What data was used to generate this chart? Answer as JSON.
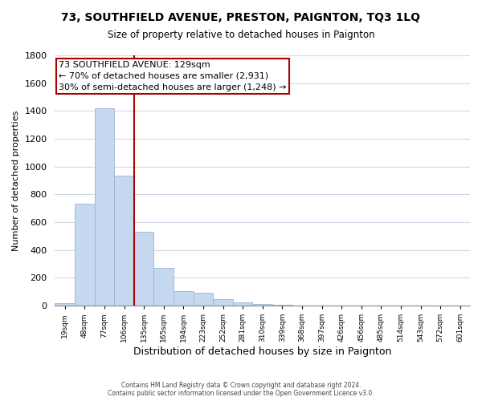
{
  "title": "73, SOUTHFIELD AVENUE, PRESTON, PAIGNTON, TQ3 1LQ",
  "subtitle": "Size of property relative to detached houses in Paignton",
  "xlabel": "Distribution of detached houses by size in Paignton",
  "ylabel": "Number of detached properties",
  "footer_line1": "Contains HM Land Registry data © Crown copyright and database right 2024.",
  "footer_line2": "Contains public sector information licensed under the Open Government Licence v3.0.",
  "bar_labels": [
    "19sqm",
    "48sqm",
    "77sqm",
    "106sqm",
    "135sqm",
    "165sqm",
    "194sqm",
    "223sqm",
    "252sqm",
    "281sqm",
    "310sqm",
    "339sqm",
    "368sqm",
    "397sqm",
    "426sqm",
    "456sqm",
    "485sqm",
    "514sqm",
    "543sqm",
    "572sqm",
    "601sqm"
  ],
  "bar_values": [
    20,
    735,
    1420,
    935,
    530,
    270,
    103,
    90,
    48,
    25,
    10,
    5,
    2,
    1,
    0,
    0,
    0,
    0,
    0,
    0,
    0
  ],
  "bar_color": "#c5d8f0",
  "bar_edge_color": "#9ab5d0",
  "annotation_title": "73 SOUTHFIELD AVENUE: 129sqm",
  "annotation_line1": "← 70% of detached houses are smaller (2,931)",
  "annotation_line2": "30% of semi-detached houses are larger (1,248) →",
  "vline_bar_index": 4,
  "annotation_box_color": "#ffffff",
  "annotation_box_edge": "#aa0000",
  "vline_color": "#aa0000",
  "ylim": [
    0,
    1800
  ],
  "yticks": [
    0,
    200,
    400,
    600,
    800,
    1000,
    1200,
    1400,
    1600,
    1800
  ],
  "grid_color": "#d0d8e8",
  "background_color": "#ffffff"
}
